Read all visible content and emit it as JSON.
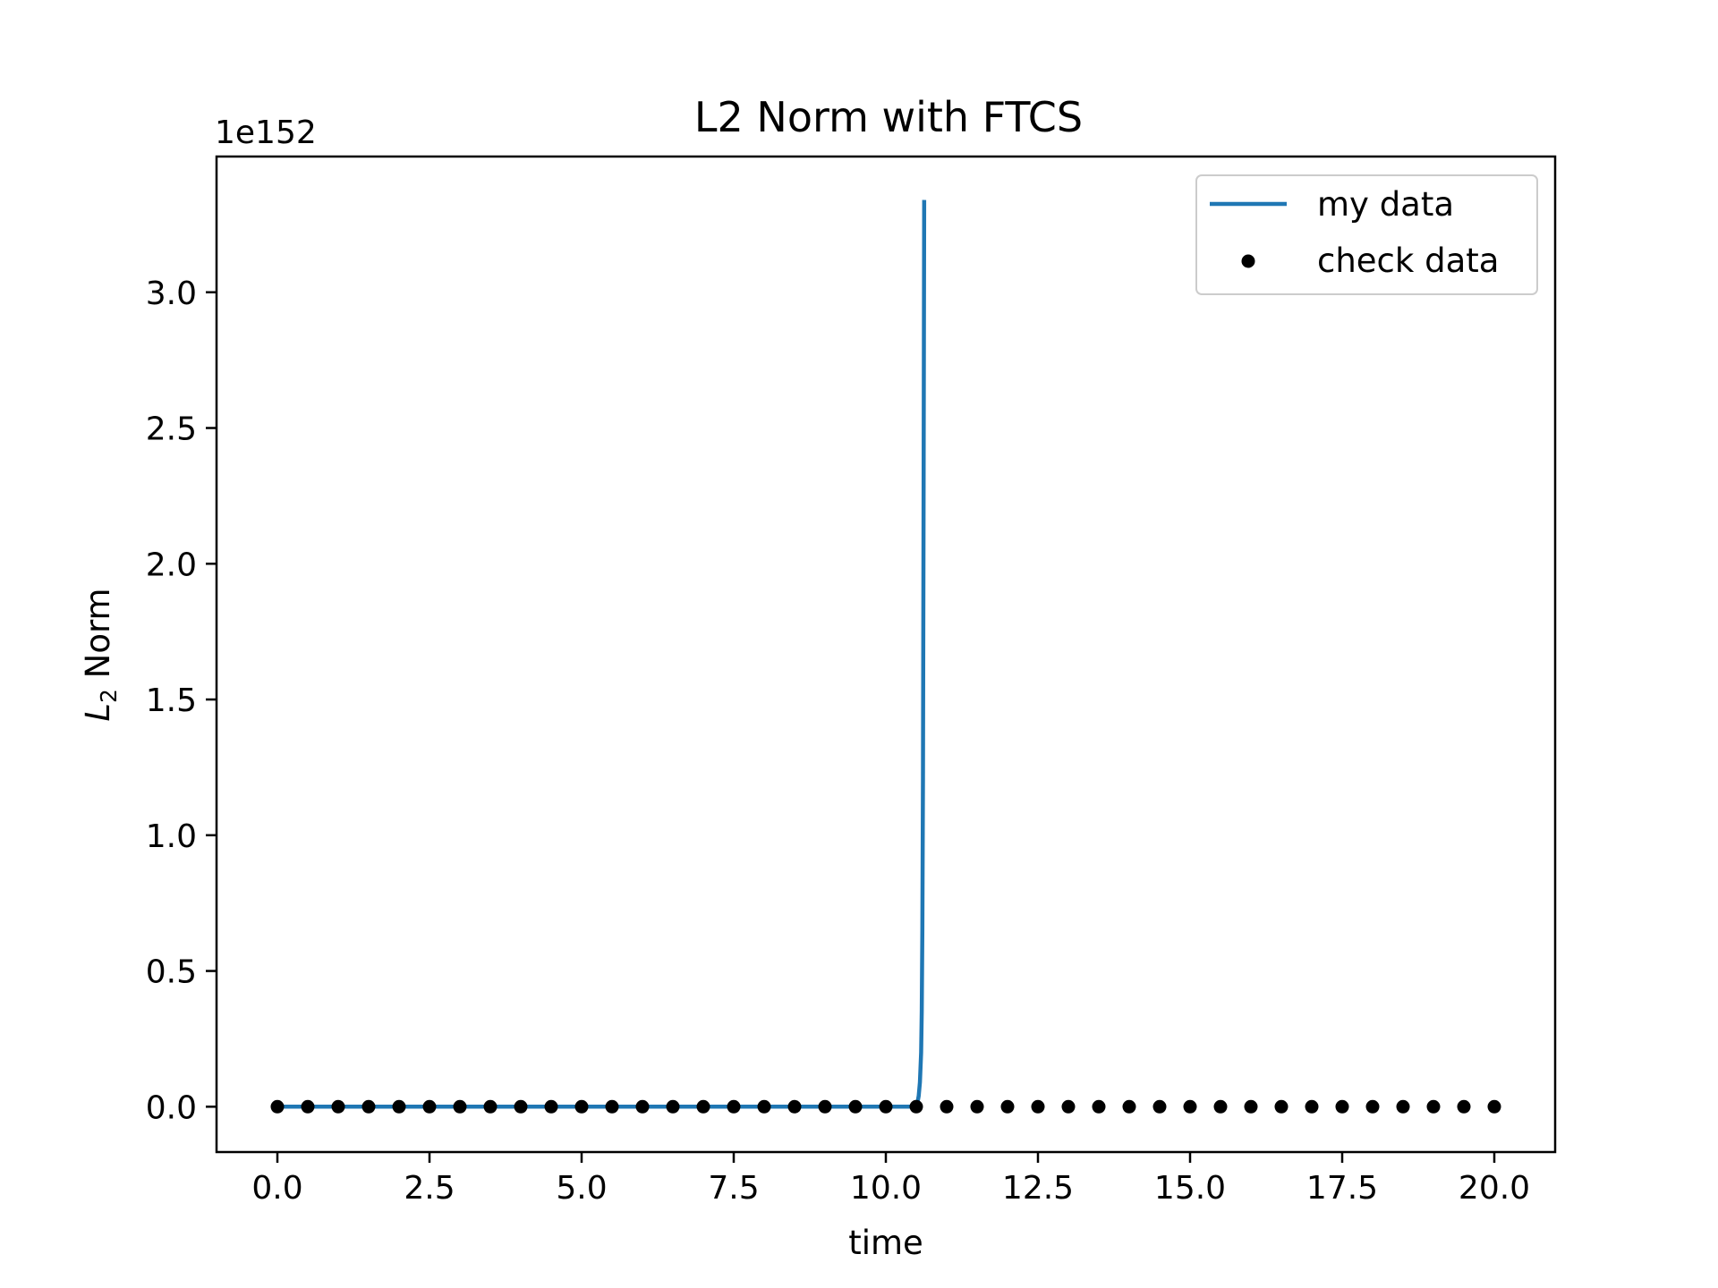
{
  "chart_data": {
    "type": "line",
    "title": "L2 Norm with FTCS",
    "xlabel": "time",
    "ylabel": {
      "base": "L",
      "subscript": "2",
      "suffix": " Norm"
    },
    "y_offset_label": "1e152",
    "y_scale_exponent": 152,
    "xlim": [
      -1.0,
      21.0
    ],
    "ylim": [
      -0.167,
      3.5
    ],
    "x_ticks": [
      0.0,
      2.5,
      5.0,
      7.5,
      10.0,
      12.5,
      15.0,
      17.5,
      20.0
    ],
    "x_tick_labels": [
      "0.0",
      "2.5",
      "5.0",
      "7.5",
      "10.0",
      "12.5",
      "15.0",
      "17.5",
      "20.0"
    ],
    "y_ticks": [
      0.0,
      0.5,
      1.0,
      1.5,
      2.0,
      2.5,
      3.0
    ],
    "y_tick_labels": [
      "0.0",
      "0.5",
      "1.0",
      "1.5",
      "2.0",
      "2.5",
      "3.0"
    ],
    "grid": false,
    "legend": {
      "placement": "top-right"
    },
    "series": [
      {
        "name": "my data",
        "kind": "line",
        "color": "#1f77b4",
        "x": [
          0.0,
          10.45,
          10.5,
          10.52,
          10.54,
          10.56,
          10.58,
          10.59,
          10.6,
          10.61,
          10.62,
          10.63
        ],
        "y": [
          0.0,
          0.0,
          0.005,
          0.015,
          0.04,
          0.09,
          0.2,
          0.35,
          0.65,
          1.2,
          2.2,
          3.34
        ]
      },
      {
        "name": "check data",
        "kind": "scatter",
        "color": "#000000",
        "x": [
          0.0,
          0.5,
          1.0,
          1.5,
          2.0,
          2.5,
          3.0,
          3.5,
          4.0,
          4.5,
          5.0,
          5.5,
          6.0,
          6.5,
          7.0,
          7.5,
          8.0,
          8.5,
          9.0,
          9.5,
          10.0,
          10.5,
          11.0,
          11.5,
          12.0,
          12.5,
          13.0,
          13.5,
          14.0,
          14.5,
          15.0,
          15.5,
          16.0,
          16.5,
          17.0,
          17.5,
          18.0,
          18.5,
          19.0,
          19.5,
          20.0
        ],
        "y": [
          0,
          0,
          0,
          0,
          0,
          0,
          0,
          0,
          0,
          0,
          0,
          0,
          0,
          0,
          0,
          0,
          0,
          0,
          0,
          0,
          0,
          0,
          0,
          0,
          0,
          0,
          0,
          0,
          0,
          0,
          0,
          0,
          0,
          0,
          0,
          0,
          0,
          0,
          0,
          0,
          0
        ]
      }
    ]
  }
}
